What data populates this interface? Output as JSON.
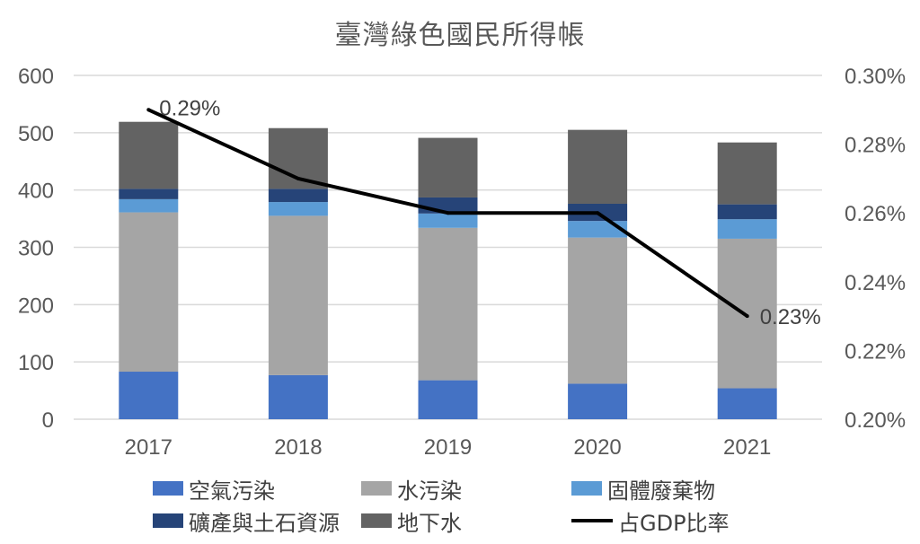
{
  "chart_data": {
    "type": "bar",
    "title": "臺灣綠色國民所得帳",
    "categories": [
      "2017",
      "2018",
      "2019",
      "2020",
      "2021"
    ],
    "stacked": true,
    "ylim": [
      0,
      600
    ],
    "y_ticks": [
      "0",
      "100",
      "200",
      "300",
      "400",
      "500",
      "600"
    ],
    "y2lim": [
      0.2,
      0.3
    ],
    "y2_ticks": [
      "0.20%",
      "0.22%",
      "0.24%",
      "0.26%",
      "0.28%",
      "0.30%"
    ],
    "grid": true,
    "legend_position": "bottom",
    "series": [
      {
        "name": "空氣污染",
        "color": "#4472C4",
        "values": [
          83,
          77,
          68,
          62,
          54
        ]
      },
      {
        "name": "水污染",
        "color": "#A5A5A5",
        "values": [
          278,
          278,
          266,
          255,
          261
        ]
      },
      {
        "name": "固體廢棄物",
        "color": "#5B9BD5",
        "values": [
          23,
          24,
          25,
          29,
          34
        ]
      },
      {
        "name": "礦產與土石資源",
        "color": "#264478",
        "values": [
          18,
          23,
          28,
          30,
          26
        ]
      },
      {
        "name": "地下水",
        "color": "#636363",
        "values": [
          117,
          106,
          104,
          129,
          108
        ]
      }
    ],
    "line_series": {
      "name": "占GDP比率",
      "color": "#000000",
      "axis": "secondary",
      "values": [
        0.29,
        0.27,
        0.26,
        0.26,
        0.23
      ],
      "labels": [
        "0.29%",
        "",
        "",
        "",
        "0.23%"
      ]
    }
  }
}
